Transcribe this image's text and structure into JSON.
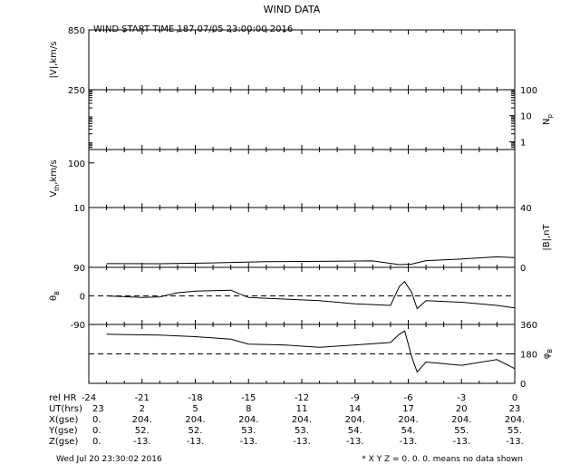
{
  "title": "WIND DATA",
  "subtitle": "WIND START TIME 187 07/05 23:00:00 2016",
  "footer": {
    "timestamp": "Wed Jul 20 23:30:02 2016",
    "note": "* X Y Z = 0. 0. 0. means no data shown"
  },
  "chart_data": {
    "type": "line",
    "x_range": [
      -24,
      0
    ],
    "panels": [
      {
        "id": "velocity",
        "ylabel": "|V|,km/s",
        "ylabel_side": "left",
        "ylim": [
          250,
          850
        ],
        "ticks": [
          850,
          250
        ],
        "series": []
      },
      {
        "id": "density",
        "ylabel": "N_p",
        "ylabel_side": "right",
        "scale": "log",
        "ylim": [
          0.5,
          100
        ],
        "ticks": [
          100,
          10,
          1
        ],
        "series": []
      },
      {
        "id": "thermal",
        "ylabel": "V_th,km/s",
        "ylabel_side": "left",
        "scale": "log",
        "ylim": [
          10,
          200
        ],
        "ticks": [
          100,
          10
        ],
        "series": []
      },
      {
        "id": "bmag",
        "ylabel": "|B|,nT",
        "ylabel_side": "right",
        "ylim": [
          0,
          40
        ],
        "ticks": [
          40,
          0
        ],
        "series": [
          {
            "x": [
              -23,
              -20,
              -17,
              -14,
              -11,
              -8,
              -6.5,
              -5.8,
              -5,
              -3,
              -1,
              0
            ],
            "y": [
              2.5,
              2.4,
              3.0,
              3.8,
              4.0,
              4.3,
              1.8,
              2.2,
              4.5,
              5.6,
              7.0,
              6.5
            ]
          }
        ]
      },
      {
        "id": "theta",
        "ylabel": "θ_B",
        "ylabel_side": "left",
        "ylim": [
          -90,
          90
        ],
        "ticks": [
          90,
          0,
          -90
        ],
        "reference": 0,
        "series": [
          {
            "x": [
              -23,
              -21,
              -20,
              -19,
              -18,
              -16,
              -15,
              -13,
              -11,
              -9,
              -7,
              -6.5,
              -6.2,
              -5.8,
              -5.5,
              -5,
              -3,
              -1,
              0
            ],
            "y": [
              0,
              -5,
              -3,
              10,
              15,
              18,
              -5,
              -10,
              -15,
              -25,
              -30,
              30,
              45,
              10,
              -40,
              -15,
              -20,
              -30,
              -38
            ]
          }
        ]
      },
      {
        "id": "phi",
        "ylabel": "φ_B",
        "ylabel_side": "right",
        "ylim": [
          0,
          360
        ],
        "ticks": [
          360,
          180,
          0
        ],
        "reference": 180,
        "series": [
          {
            "x": [
              -23,
              -20,
              -18,
              -16,
              -15,
              -13,
              -11,
              -9,
              -7,
              -6.5,
              -6.2,
              -5.8,
              -5.5,
              -5,
              -3,
              -1,
              0
            ],
            "y": [
              300,
              295,
              285,
              270,
              240,
              235,
              220,
              235,
              250,
              300,
              320,
              160,
              70,
              130,
              110,
              145,
              90
            ]
          }
        ]
      }
    ],
    "time_table": {
      "row_labels": [
        "rel HR",
        "UT(hrs)",
        "X(gse)",
        "Y(gse)",
        "Z(gse)"
      ],
      "columns": [
        {
          "rel": "-24",
          "ut": "23",
          "x": "0.",
          "y": "0.",
          "z": "0."
        },
        {
          "rel": "-21",
          "ut": "2",
          "x": "204.",
          "y": "52.",
          "z": "-13."
        },
        {
          "rel": "-18",
          "ut": "5",
          "x": "204.",
          "y": "52.",
          "z": "-13."
        },
        {
          "rel": "-15",
          "ut": "8",
          "x": "204.",
          "y": "53.",
          "z": "-13."
        },
        {
          "rel": "-12",
          "ut": "11",
          "x": "204.",
          "y": "53.",
          "z": "-13."
        },
        {
          "rel": "-9",
          "ut": "14",
          "x": "204.",
          "y": "54.",
          "z": "-13."
        },
        {
          "rel": "-6",
          "ut": "17",
          "x": "204.",
          "y": "54.",
          "z": "-13."
        },
        {
          "rel": "-3",
          "ut": "20",
          "x": "204.",
          "y": "55.",
          "z": "-13."
        },
        {
          "rel": "0",
          "ut": "23",
          "x": "204.",
          "y": "55.",
          "z": "-13."
        }
      ]
    }
  }
}
